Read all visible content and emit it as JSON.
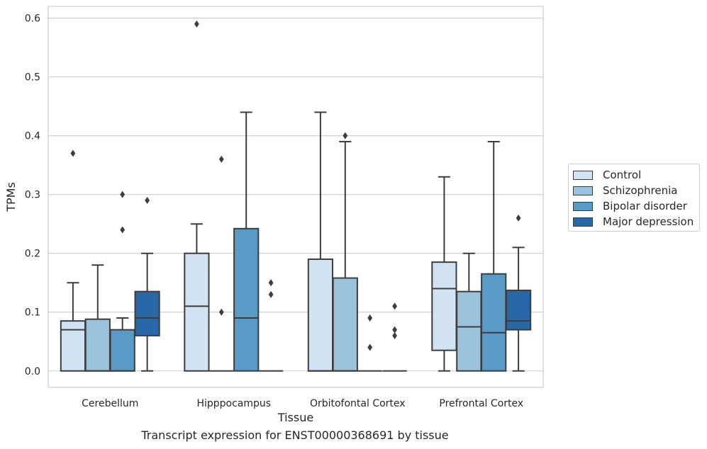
{
  "chart_data": {
    "type": "box",
    "title": "",
    "caption": "Transcript expression for ENST00000368691 by tissue",
    "xlabel": "Tissue",
    "ylabel": "TPMs",
    "ylim": [
      -0.028,
      0.62
    ],
    "yticks": [
      "0.0",
      "0.1",
      "0.2",
      "0.3",
      "0.4",
      "0.5",
      "0.6"
    ],
    "grid": true,
    "legend_position": "right",
    "categories": [
      "Cerebellum",
      "Hipppocampus",
      "Orbitofontal Cortex",
      "Prefrontal Cortex"
    ],
    "series": [
      {
        "name": "Control",
        "color": "#d1e2f2",
        "boxes": [
          {
            "whislo": 0.0,
            "q1": 0.0,
            "med": 0.07,
            "q3": 0.085,
            "whishi": 0.15,
            "fliers": [
              0.37
            ]
          },
          {
            "whislo": 0.0,
            "q1": 0.0,
            "med": 0.11,
            "q3": 0.2,
            "whishi": 0.25,
            "fliers": [
              0.59
            ]
          },
          {
            "whislo": 0.0,
            "q1": 0.0,
            "med": 0.0,
            "q3": 0.19,
            "whishi": 0.44,
            "fliers": []
          },
          {
            "whislo": 0.0,
            "q1": 0.035,
            "med": 0.14,
            "q3": 0.185,
            "whishi": 0.33,
            "fliers": []
          }
        ]
      },
      {
        "name": "Schizophrenia",
        "color": "#9ac3db",
        "boxes": [
          {
            "whislo": 0.0,
            "q1": 0.0,
            "med": 0.0,
            "q3": 0.088,
            "whishi": 0.18,
            "fliers": []
          },
          {
            "whislo": 0.0,
            "q1": 0.0,
            "med": 0.0,
            "q3": 0.0,
            "whishi": 0.0,
            "fliers": [
              0.1,
              0.36
            ]
          },
          {
            "whislo": 0.0,
            "q1": 0.0,
            "med": 0.0,
            "q3": 0.158,
            "whishi": 0.39,
            "fliers": [
              0.4
            ]
          },
          {
            "whislo": 0.0,
            "q1": 0.0,
            "med": 0.075,
            "q3": 0.135,
            "whishi": 0.2,
            "fliers": []
          }
        ]
      },
      {
        "name": "Bipolar disorder",
        "color": "#5a9ac6",
        "boxes": [
          {
            "whislo": 0.0,
            "q1": 0.0,
            "med": 0.0,
            "q3": 0.07,
            "whishi": 0.09,
            "fliers": [
              0.24,
              0.3
            ]
          },
          {
            "whislo": 0.0,
            "q1": 0.0,
            "med": 0.09,
            "q3": 0.242,
            "whishi": 0.44,
            "fliers": []
          },
          {
            "whislo": 0.0,
            "q1": 0.0,
            "med": 0.0,
            "q3": 0.0,
            "whishi": 0.0,
            "fliers": [
              0.04,
              0.09
            ]
          },
          {
            "whislo": 0.0,
            "q1": 0.0,
            "med": 0.065,
            "q3": 0.165,
            "whishi": 0.39,
            "fliers": []
          }
        ]
      },
      {
        "name": "Major depression",
        "color": "#2867a8",
        "boxes": [
          {
            "whislo": 0.0,
            "q1": 0.06,
            "med": 0.09,
            "q3": 0.135,
            "whishi": 0.2,
            "fliers": [
              0.29
            ]
          },
          {
            "whislo": 0.0,
            "q1": 0.0,
            "med": 0.0,
            "q3": 0.0,
            "whishi": 0.0,
            "fliers": [
              0.13,
              0.15
            ]
          },
          {
            "whislo": 0.0,
            "q1": 0.0,
            "med": 0.0,
            "q3": 0.0,
            "whishi": 0.0,
            "fliers": [
              0.06,
              0.07,
              0.11
            ]
          },
          {
            "whislo": 0.0,
            "q1": 0.07,
            "med": 0.085,
            "q3": 0.137,
            "whishi": 0.21,
            "fliers": [
              0.26
            ]
          }
        ]
      }
    ]
  },
  "legend": {
    "items": [
      {
        "label": "Control"
      },
      {
        "label": "Schizophrenia"
      },
      {
        "label": "Bipolar disorder"
      },
      {
        "label": "Major depression"
      }
    ]
  }
}
